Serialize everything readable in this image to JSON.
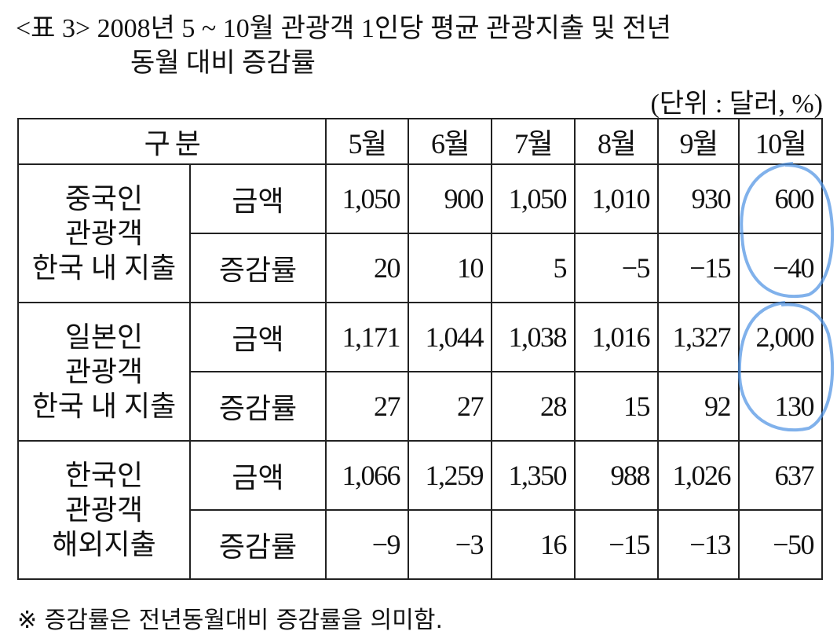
{
  "title_lines": [
    "<표 3> 2008년 5 ~ 10월 관광객 1인당 평균 관광지출 및 전년",
    "동월 대비 증감률"
  ],
  "unit": "(단위 : 달러, %)",
  "table": {
    "header": [
      "구 분",
      "5월",
      "6월",
      "7월",
      "8월",
      "9월",
      "10월"
    ],
    "groups": [
      {
        "label_lines": [
          "중국인",
          "관광객",
          "한국 내 지출"
        ],
        "rows": [
          {
            "label": "금액",
            "cells": [
              "1,050",
              "900",
              "1,050",
              "1,010",
              "930",
              "600"
            ]
          },
          {
            "label": "증감률",
            "cells": [
              "20",
              "10",
              "5",
              "−5",
              "−15",
              "−40"
            ]
          }
        ]
      },
      {
        "label_lines": [
          "일본인",
          "관광객",
          "한국 내 지출"
        ],
        "rows": [
          {
            "label": "금액",
            "cells": [
              "1,171",
              "1,044",
              "1,038",
              "1,016",
              "1,327",
              "2,000"
            ]
          },
          {
            "label": "증감률",
            "cells": [
              "27",
              "27",
              "28",
              "15",
              "92",
              "130"
            ]
          }
        ]
      },
      {
        "label_lines": [
          "한국인",
          "관광객",
          "해외지출"
        ],
        "rows": [
          {
            "label": "금액",
            "cells": [
              "1,066",
              "1,259",
              "1,350",
              "988",
              "1,026",
              "637"
            ]
          },
          {
            "label": "증감률",
            "cells": [
              "−9",
              "−3",
              "16",
              "−15",
              "−13",
              "−50"
            ]
          }
        ]
      }
    ]
  },
  "footnote": "※ 증감률은 전년동월대비 증감률을 의미함."
}
